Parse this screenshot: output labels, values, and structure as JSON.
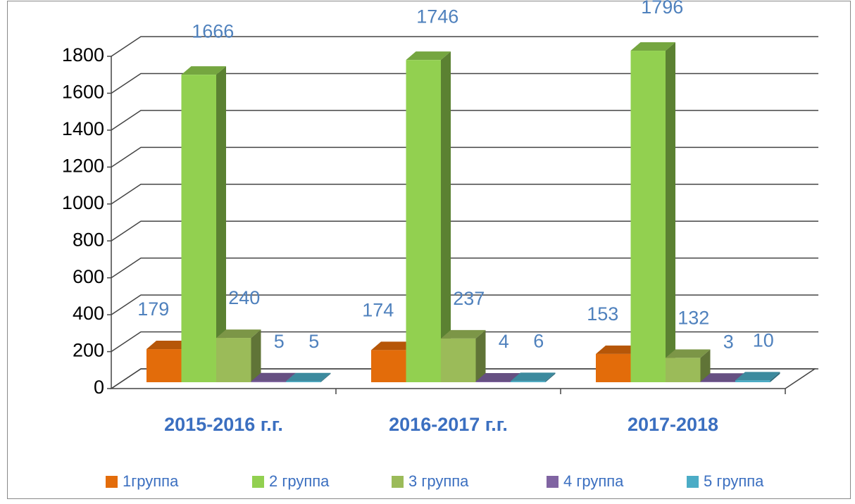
{
  "chart_data": {
    "type": "bar3d",
    "categories": [
      "2015-2016 г.г.",
      "2016-2017 г.г.",
      "2017-2018"
    ],
    "series": [
      {
        "name": "1группа",
        "color": "#e36c0a",
        "values": [
          179,
          174,
          153
        ]
      },
      {
        "name": "2  группа",
        "color": "#92d050",
        "values": [
          1666,
          1746,
          1796
        ]
      },
      {
        "name": "3 группа",
        "color": "#9bbb59",
        "values": [
          240,
          237,
          132
        ]
      },
      {
        "name": "4 группа",
        "color": "#8064a2",
        "values": [
          5,
          4,
          3
        ]
      },
      {
        "name": "5 группа",
        "color": "#4bacc6",
        "values": [
          5,
          6,
          10
        ]
      }
    ],
    "ylim": [
      0,
      1800
    ],
    "yticks": [
      0,
      200,
      400,
      600,
      800,
      1000,
      1200,
      1400,
      1600,
      1800
    ],
    "grid": true,
    "legend": "bottom"
  }
}
